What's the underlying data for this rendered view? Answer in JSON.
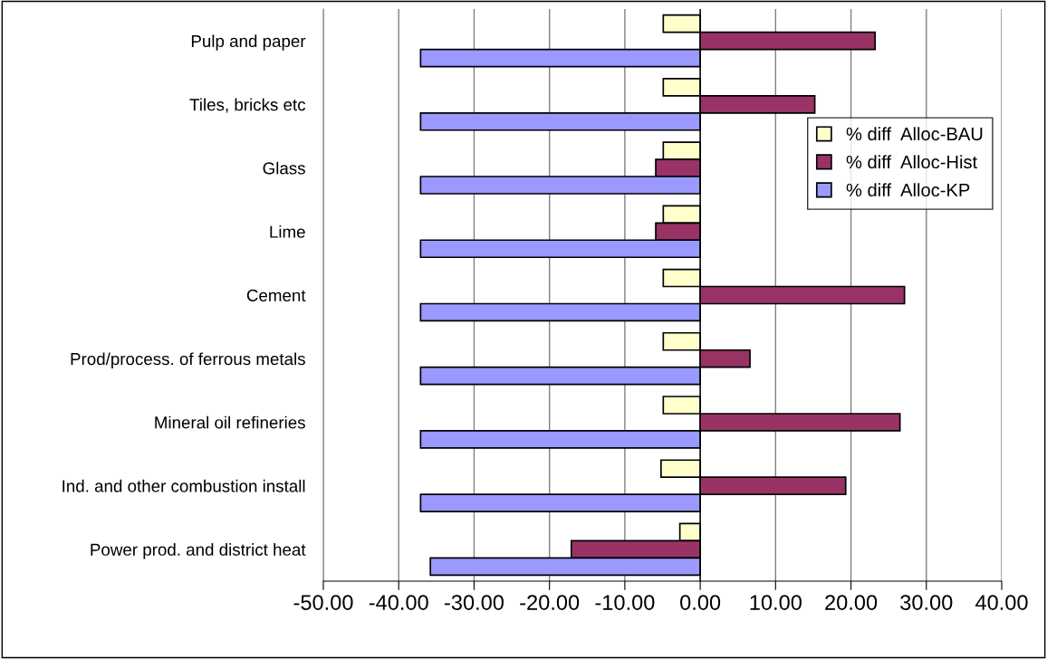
{
  "chart_data": {
    "type": "bar",
    "orientation": "horizontal",
    "categories": [
      "Pulp and paper",
      "Tiles, bricks etc",
      "Glass",
      "Lime",
      "Cement",
      "Prod/process. of ferrous metals",
      "Mineral oil refineries",
      "Ind. and other combustion install",
      "Power prod. and district heat"
    ],
    "series": [
      {
        "name": "% diff  Alloc-BAU",
        "color": "#ffffcc",
        "values": [
          -4.9,
          -4.9,
          -4.9,
          -4.9,
          -4.9,
          -4.9,
          -4.9,
          -5.2,
          -2.7
        ]
      },
      {
        "name": "% diff  Alloc-Hist",
        "color": "#993366",
        "values": [
          23.2,
          15.2,
          -5.9,
          -5.9,
          27.1,
          6.6,
          26.5,
          19.3,
          -17.1
        ]
      },
      {
        "name": "% diff  Alloc-KP",
        "color": "#9999ff",
        "values": [
          -37.1,
          -37.1,
          -37.1,
          -37.1,
          -37.1,
          -37.1,
          -37.1,
          -37.1,
          -35.8
        ]
      }
    ],
    "xlim": [
      -50,
      40
    ],
    "xticks": [
      {
        "value": -50,
        "label": "-50.00"
      },
      {
        "value": -40,
        "label": "-40.00"
      },
      {
        "value": -30,
        "label": "-30.00"
      },
      {
        "value": -20,
        "label": "-20.00"
      },
      {
        "value": -10,
        "label": "-10.00"
      },
      {
        "value": 0,
        "label": "0.00"
      },
      {
        "value": 10,
        "label": "10.00"
      },
      {
        "value": 20,
        "label": "20.00"
      },
      {
        "value": 30,
        "label": "30.00"
      },
      {
        "value": 40,
        "label": "40.00"
      }
    ],
    "grid": "x",
    "legend": "right"
  }
}
